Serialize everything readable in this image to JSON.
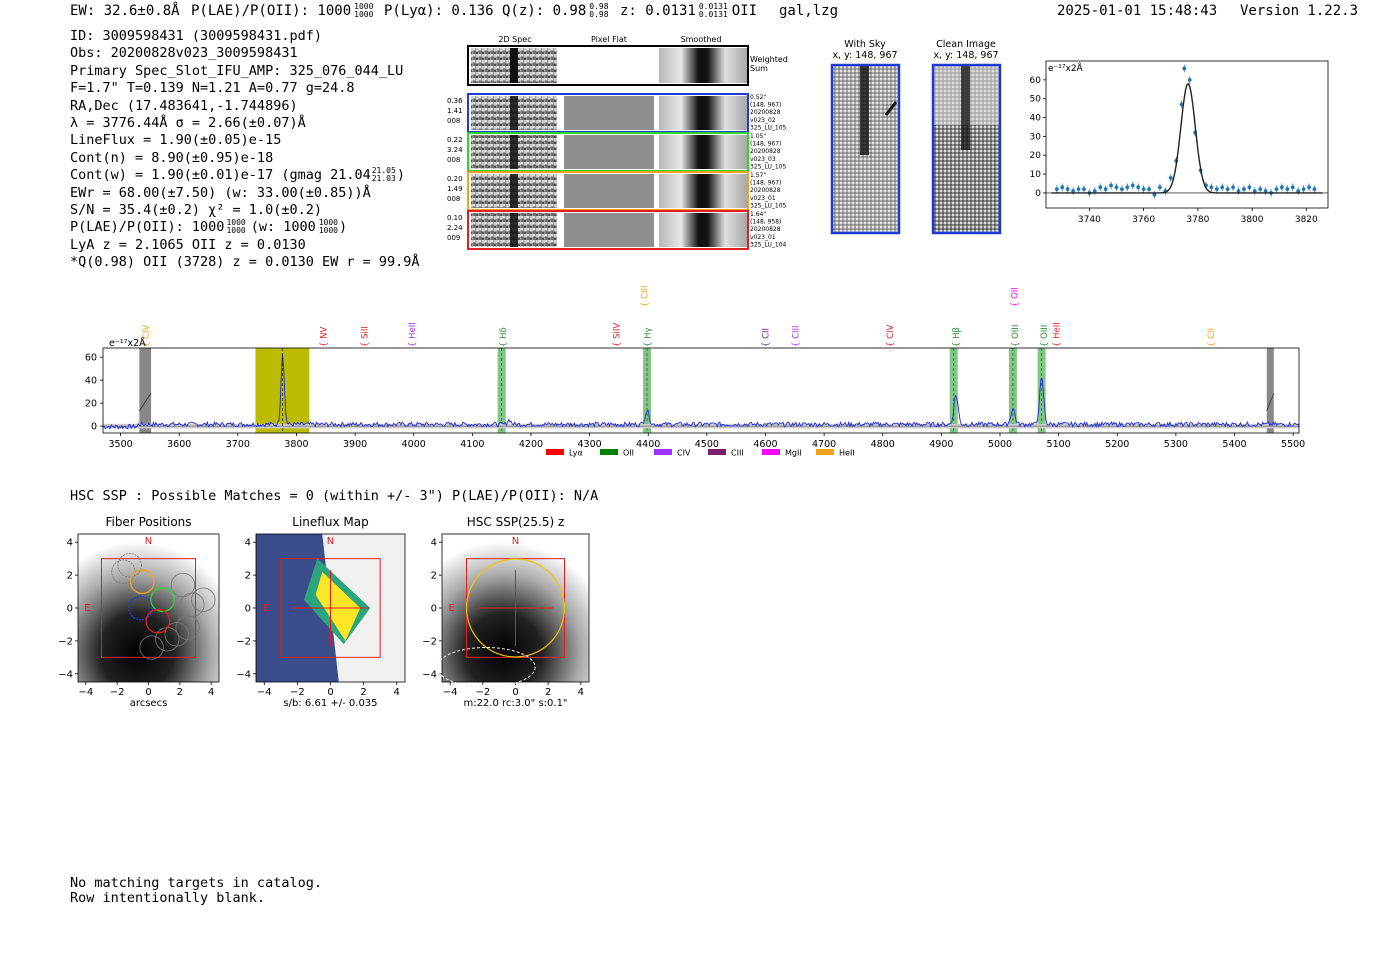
{
  "header": {
    "ew": "EW: 32.6±0.8Å",
    "plae_pre": "P(LAE)/P(OII): 1000",
    "plae_up": "1000",
    "plae_lo": "1000",
    "plya": "P(Lyα): 0.136",
    "qz_pre": "Q(z): 0.98",
    "qz_up": "0.98",
    "qz_lo": "0.98",
    "z_pre": "z: 0.0131",
    "z_up": "0.0131",
    "z_lo": "0.0131",
    "z_line": "OII",
    "flags": "gal,lzg",
    "timestamp": "2025-01-01 15:48:43",
    "version": "Version 1.22.3"
  },
  "info": {
    "id": "ID: 3009598431 (3009598431.pdf)",
    "obs": "Obs: 20200828v023_3009598431",
    "primary": "Primary Spec_Slot_IFU_AMP: 325_076_044_LU",
    "fit": "F=1.7\"  T=0.139  N=1.21  A=0.77  g=24.8",
    "radec": "RA,Dec (17.483641,-1.744896)",
    "lambda": "λ = 3776.44Å  σ = 2.66(±0.07)Å",
    "lineflux": "LineFlux = 1.90(±0.05)e-15",
    "contn": "Cont(n) = 8.90(±0.95)e-18",
    "contw_pre": "Cont(w) = 1.90(±0.01)e-17 (gmag 21.04",
    "contw_up": "21.05",
    "contw_lo": "21.03",
    "contw_post": ")",
    "ewr": "EWr = 68.00(±7.50) (w: 33.00(±0.85))Å",
    "sn": "S/N = 35.4(±0.2)  χ² = 1.0(±0.2)",
    "plae_pre": "P(LAE)/P(OII): 1000",
    "plae_up": "1000",
    "plae_lo": "1000",
    "plae_mid": "(w: 1000",
    "plae2_up": "1000",
    "plae2_lo": "1000",
    "plae_post": ")",
    "lyaz": "LyA z = 2.1065  OII z = 0.0130",
    "qline": "*Q(0.98) OII (3728) z = 0.0130  EW r = 99.9Å"
  },
  "cutouts": {
    "col_2d": "2D Spec",
    "col_flat": "Pixel Flat",
    "col_smooth": "Smoothed",
    "weighted_sum": "Weighted Sum",
    "rows": [
      {
        "left": [
          "0.36",
          "1.41",
          "008"
        ],
        "right": [
          "0.52\"",
          "(148, 967)",
          "20200828",
          "v023_02",
          "325_LU_105"
        ],
        "color": "#1f3ad6"
      },
      {
        "left": [
          "0.22",
          "3.24",
          "008"
        ],
        "right": [
          "1.05\"",
          "(148, 967)",
          "20200828",
          "v023_03",
          "325_LU_105"
        ],
        "color": "#2bd62b"
      },
      {
        "left": [
          "0.20",
          "1.49",
          "008"
        ],
        "right": [
          "1.57\"",
          "(148, 967)",
          "20200828",
          "v023_01",
          "325_LU_105"
        ],
        "color": "#f2a21a"
      },
      {
        "left": [
          "0.10",
          "2.24",
          "009"
        ],
        "right": [
          "1.64\"",
          "(148, 958)",
          "20200828",
          "v023_01",
          "325_LU_104"
        ],
        "color": "#e02020"
      }
    ],
    "with_sky": "With Sky",
    "with_sky_xy": "x, y: 148, 967",
    "clean": "Clean Image",
    "clean_xy": "x, y: 148, 967"
  },
  "zoom_data": {
    "type": "scatter",
    "units": "e⁻¹⁷x2Å",
    "xlim": [
      3724,
      3828
    ],
    "ylim": [
      -8,
      70
    ],
    "xticks": [
      3740,
      3760,
      3780,
      3800,
      3820
    ],
    "yticks": [
      0,
      10,
      20,
      30,
      40,
      50,
      60
    ],
    "gauss": {
      "center": 3776.4,
      "sigma": 2.66,
      "amp": 58
    },
    "points": [
      [
        3728,
        2
      ],
      [
        3730,
        3
      ],
      [
        3732,
        2
      ],
      [
        3734,
        1
      ],
      [
        3736,
        2
      ],
      [
        3738,
        2
      ],
      [
        3740,
        0
      ],
      [
        3742,
        1
      ],
      [
        3744,
        3
      ],
      [
        3746,
        2
      ],
      [
        3748,
        4
      ],
      [
        3750,
        3
      ],
      [
        3752,
        2
      ],
      [
        3754,
        3
      ],
      [
        3756,
        4
      ],
      [
        3758,
        3
      ],
      [
        3760,
        2
      ],
      [
        3762,
        2
      ],
      [
        3764,
        -1
      ],
      [
        3766,
        3
      ],
      [
        3768,
        1
      ],
      [
        3770,
        8
      ],
      [
        3772,
        17
      ],
      [
        3774,
        47
      ],
      [
        3775,
        66
      ],
      [
        3777,
        60
      ],
      [
        3779,
        32
      ],
      [
        3781,
        12
      ],
      [
        3783,
        4
      ],
      [
        3785,
        3
      ],
      [
        3787,
        2
      ],
      [
        3789,
        3
      ],
      [
        3791,
        2
      ],
      [
        3793,
        3
      ],
      [
        3795,
        1
      ],
      [
        3797,
        2
      ],
      [
        3799,
        3
      ],
      [
        3801,
        1
      ],
      [
        3803,
        2
      ],
      [
        3805,
        1
      ],
      [
        3807,
        0
      ],
      [
        3809,
        2
      ],
      [
        3811,
        3
      ],
      [
        3813,
        2
      ],
      [
        3815,
        3
      ],
      [
        3817,
        1
      ],
      [
        3819,
        2
      ],
      [
        3821,
        3
      ],
      [
        3823,
        2
      ]
    ]
  },
  "chart_data": {
    "type": "line",
    "title": "",
    "units": "e⁻¹⁷x2Å",
    "xlim": [
      3470,
      5510
    ],
    "ylim": [
      -6,
      68
    ],
    "xticks": [
      3500,
      3600,
      3700,
      3800,
      3900,
      4000,
      4100,
      4200,
      4300,
      4400,
      4500,
      4600,
      4700,
      4800,
      4900,
      5000,
      5100,
      5200,
      5300,
      5400,
      5500
    ],
    "yticks": [
      0,
      20,
      40,
      60
    ],
    "peaks": [
      {
        "wave": 3776.4,
        "amp": 62,
        "sigma": 2.8
      },
      {
        "wave": 4398,
        "amp": 12,
        "sigma": 3.5
      },
      {
        "wave": 4925,
        "amp": 26,
        "sigma": 3.5
      },
      {
        "wave": 5022,
        "amp": 14,
        "sigma": 3.5
      },
      {
        "wave": 5071,
        "amp": 40,
        "sigma": 3.5
      },
      {
        "wave": 4163,
        "amp": 4,
        "sigma": 3
      }
    ],
    "highlight": {
      "from": 3730,
      "to": 3822
    },
    "masks": [
      {
        "from": 3532,
        "to": 3552
      },
      {
        "from": 5455,
        "to": 5467
      }
    ],
    "bands": [
      4150,
      4398,
      4921,
      5022,
      5071
    ],
    "lines": [
      {
        "label": "CIV",
        "wave": 3543,
        "color": "#f2a21a",
        "row": 1
      },
      {
        "label": "NV",
        "wave": 3846,
        "color": "#e02020",
        "row": 1
      },
      {
        "label": "SiII",
        "wave": 3916,
        "color": "#e02020",
        "row": 1
      },
      {
        "label": "HeII",
        "wave": 3997,
        "color": "#9b30ff",
        "row": 1
      },
      {
        "label": "Hδ",
        "wave": 4152,
        "color": "#2a8a2a",
        "row": 1
      },
      {
        "label": "SiIV",
        "wave": 4346,
        "color": "#e02020",
        "row": 1
      },
      {
        "label": "CIII",
        "wave": 4394,
        "color": "#f2a21a",
        "row": 0
      },
      {
        "label": "Hγ",
        "wave": 4399,
        "color": "#2a8a2a",
        "row": 1
      },
      {
        "label": "CII",
        "wave": 4600,
        "color": "#7a1d8a",
        "row": 1
      },
      {
        "label": "CIII",
        "wave": 4651,
        "color": "#9b30ff",
        "row": 1
      },
      {
        "label": "CIV",
        "wave": 4812,
        "color": "#e02020",
        "row": 1
      },
      {
        "label": "Hβ",
        "wave": 4925,
        "color": "#2a8a2a",
        "row": 1
      },
      {
        "label": "OII",
        "wave": 5025,
        "color": "#ff00ff",
        "row": 0
      },
      {
        "label": "OIII",
        "wave": 5026,
        "color": "#2a8a2a",
        "row": 1
      },
      {
        "label": "OIII",
        "wave": 5075,
        "color": "#2a8a2a",
        "row": 1
      },
      {
        "label": "HeII",
        "wave": 5096,
        "color": "#e02020",
        "row": 1
      },
      {
        "label": "CII",
        "wave": 5360,
        "color": "#f2a21a",
        "row": 1
      }
    ],
    "legend": [
      {
        "label": "Lyα",
        "color": "#ff0000"
      },
      {
        "label": "OII",
        "color": "#008000"
      },
      {
        "label": "CIV",
        "color": "#9b30ff"
      },
      {
        "label": "CIII",
        "color": "#7a1d6a"
      },
      {
        "label": "MgII",
        "color": "#ff00ff"
      },
      {
        "label": "HeII",
        "color": "#f2a21a"
      }
    ]
  },
  "hsc": {
    "header": "HSC SSP : Possible Matches = 0 (within +/- 3\")  P(LAE)/P(OII): N/A",
    "axis_ticks": [
      "4",
      "2",
      "0",
      "−2",
      "−4"
    ],
    "xaxis_ticks": [
      "−4",
      "−2",
      "0",
      "2",
      "4"
    ],
    "panels": [
      {
        "title": "Fiber Positions",
        "xlabel": "arcsecs"
      },
      {
        "title": "Lineflux Map",
        "xlabel": "s/b: 6.61 +/- 0.035"
      },
      {
        "title": "HSC SSP(25.5) z",
        "xlabel": "m:22.0 rc:3.0\"  s:0.1\""
      }
    ],
    "n_label": "N",
    "e_label": "E"
  },
  "footer": {
    "line1": "No matching targets in catalog.",
    "line2": "Row intentionally blank."
  }
}
